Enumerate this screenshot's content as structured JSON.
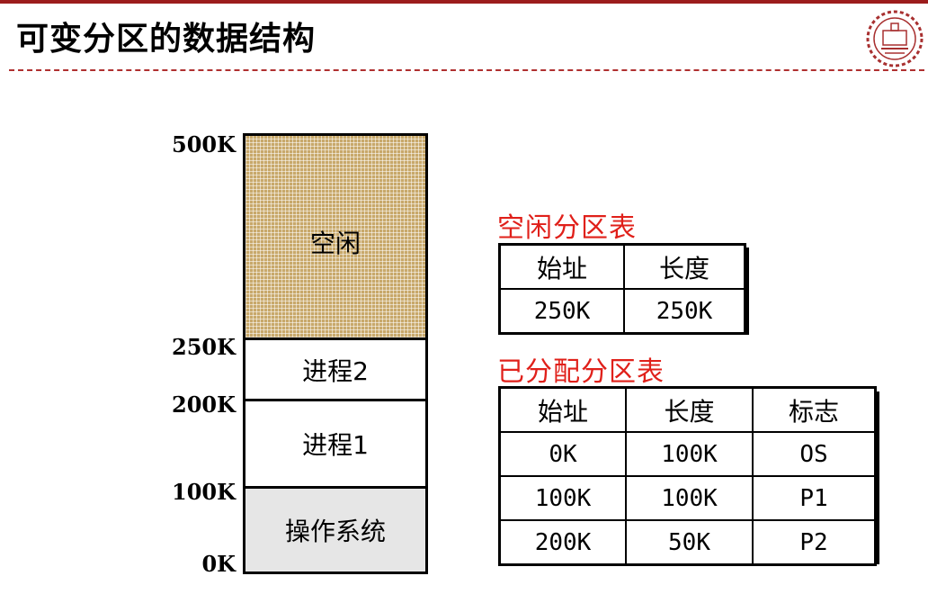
{
  "slide": {
    "title": "可变分区的数据结构"
  },
  "memory": {
    "labels": [
      "500K",
      "250K",
      "200K",
      "100K",
      "0K"
    ],
    "segments": {
      "free": "空闲",
      "process2": "进程2",
      "process1": "进程1",
      "os": "操作系统"
    }
  },
  "free_table": {
    "caption": "空闲分区表",
    "headers": [
      "始址",
      "长度"
    ],
    "rows": [
      [
        "250K",
        "250K"
      ]
    ]
  },
  "alloc_table": {
    "caption": "已分配分区表",
    "headers": [
      "始址",
      "长度",
      "标志"
    ],
    "rows": [
      [
        "0K",
        "100K",
        "OS"
      ],
      [
        "100K",
        "100K",
        "P1"
      ],
      [
        "200K",
        "50K",
        "P2"
      ]
    ]
  },
  "colors": {
    "accent_red": "#e0201a",
    "topbar": "#9c1c1c",
    "free_fill": "#c8a86a",
    "os_fill": "#e6e6e6"
  },
  "logo": {
    "icon": "university-emblem-icon"
  }
}
